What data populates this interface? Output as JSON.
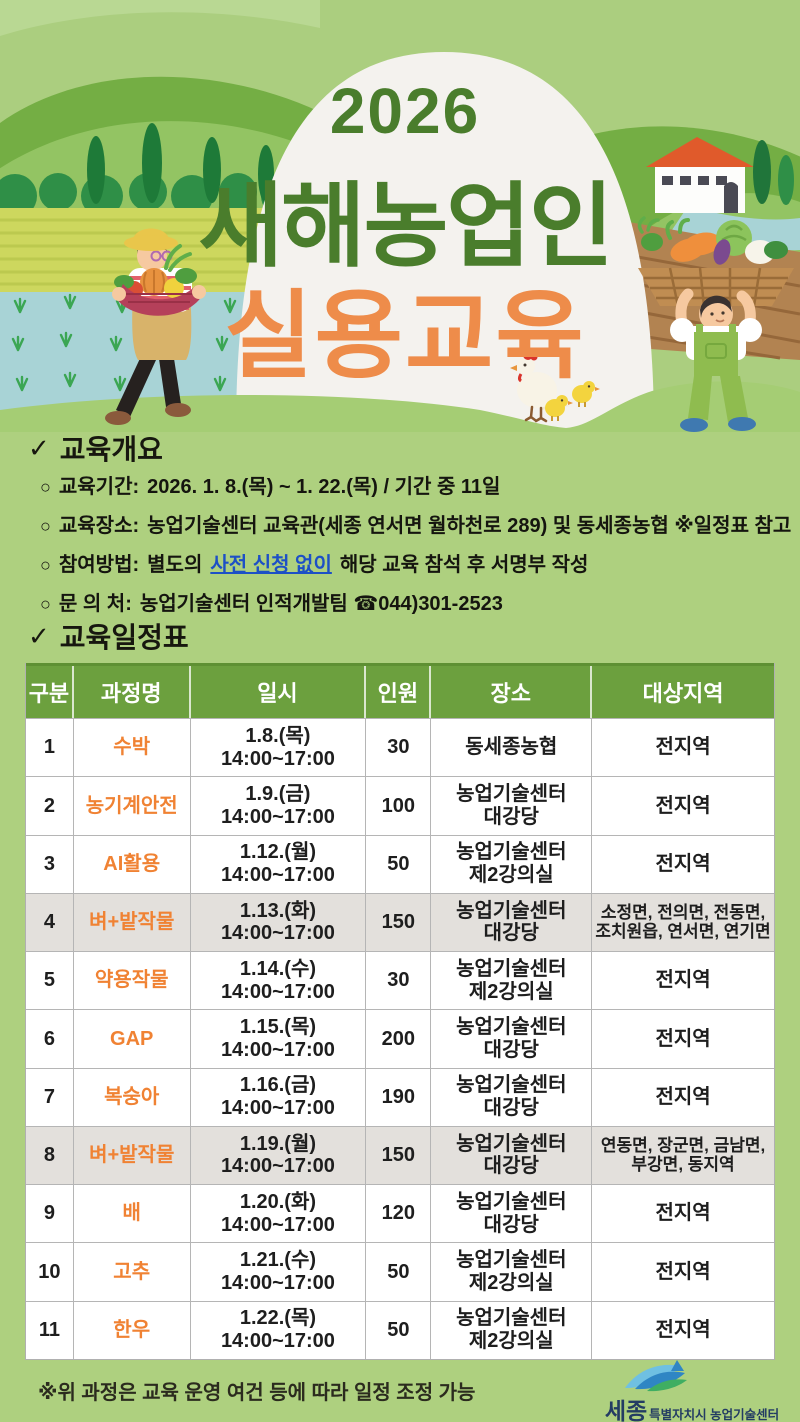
{
  "icons": {
    "check": "✓",
    "bullet": "○"
  },
  "title": {
    "year": "2026",
    "line1": "새해농업인",
    "line2": "실용교육"
  },
  "overview": {
    "heading": "교육개요",
    "items": [
      {
        "label": "교육기간:",
        "text": "2026. 1. 8.(목) ~ 1. 22.(목) / 기간 중 11일"
      },
      {
        "label": "교육장소:",
        "text": "농업기술센터 교육관(세종 연서면 월하천로 289) 및 동세종농협 ※일정표 참고"
      },
      {
        "label": "참여방법:",
        "pre": "별도의",
        "link": "사전 신청 없이",
        "post": "해당 교육 참석 후 서명부 작성"
      },
      {
        "label": "문 의 처:",
        "text": "농업기술센터 인적개발팀 ☎044)301-2523"
      }
    ]
  },
  "schedule": {
    "heading": "교육일정표",
    "columns": [
      "구분",
      "과정명",
      "일시",
      "인원",
      "장소",
      "대상지역"
    ],
    "time": "14:00~17:00",
    "rows": [
      {
        "no": "1",
        "course": "수박",
        "date": "1.8.(목)",
        "people": "30",
        "place": [
          "동세종농협"
        ],
        "region": [
          "전지역"
        ],
        "highlight": false
      },
      {
        "no": "2",
        "course": "농기계안전",
        "date": "1.9.(금)",
        "people": "100",
        "place": [
          "농업기술센터",
          "대강당"
        ],
        "region": [
          "전지역"
        ],
        "highlight": false
      },
      {
        "no": "3",
        "course": "AI활용",
        "date": "1.12.(월)",
        "people": "50",
        "place": [
          "농업기술센터",
          "제2강의실"
        ],
        "region": [
          "전지역"
        ],
        "highlight": false
      },
      {
        "no": "4",
        "course": "벼+밭작물",
        "date": "1.13.(화)",
        "people": "150",
        "place": [
          "농업기술센터",
          "대강당"
        ],
        "region": [
          "소정면, 전의면, 전동면,",
          "조치원읍, 연서면, 연기면"
        ],
        "highlight": true
      },
      {
        "no": "5",
        "course": "약용작물",
        "date": "1.14.(수)",
        "people": "30",
        "place": [
          "농업기술센터",
          "제2강의실"
        ],
        "region": [
          "전지역"
        ],
        "highlight": false
      },
      {
        "no": "6",
        "course": "GAP",
        "date": "1.15.(목)",
        "people": "200",
        "place": [
          "농업기술센터",
          "대강당"
        ],
        "region": [
          "전지역"
        ],
        "highlight": false
      },
      {
        "no": "7",
        "course": "복숭아",
        "date": "1.16.(금)",
        "people": "190",
        "place": [
          "농업기술센터",
          "대강당"
        ],
        "region": [
          "전지역"
        ],
        "highlight": false
      },
      {
        "no": "8",
        "course": "벼+밭작물",
        "date": "1.19.(월)",
        "people": "150",
        "place": [
          "농업기술센터",
          "대강당"
        ],
        "region": [
          "연동면, 장군면, 금남면,",
          "부강면, 동지역"
        ],
        "highlight": true
      },
      {
        "no": "9",
        "course": "배",
        "date": "1.20.(화)",
        "people": "120",
        "place": [
          "농업기술센터",
          "대강당"
        ],
        "region": [
          "전지역"
        ],
        "highlight": false
      },
      {
        "no": "10",
        "course": "고추",
        "date": "1.21.(수)",
        "people": "50",
        "place": [
          "농업기술센터",
          "제2강의실"
        ],
        "region": [
          "전지역"
        ],
        "highlight": false
      },
      {
        "no": "11",
        "course": "한우",
        "date": "1.22.(목)",
        "people": "50",
        "place": [
          "농업기술센터",
          "제2강의실"
        ],
        "region": [
          "전지역"
        ],
        "highlight": false
      }
    ],
    "note": "※위 과정은 교육 운영 여건 등에 따라 일정 조정 가능"
  },
  "logo": {
    "name": "세종",
    "suffix": "특별자치시 농업기술센터"
  },
  "colors": {
    "background": "#aed07f",
    "title_green": "#4a7d2c",
    "title_orange": "#ee8c4a",
    "table_header_green": "#6ca03e",
    "row_highlight": "#e3e0dc",
    "course_orange": "#f08233",
    "link_blue": "#1d50c6"
  }
}
